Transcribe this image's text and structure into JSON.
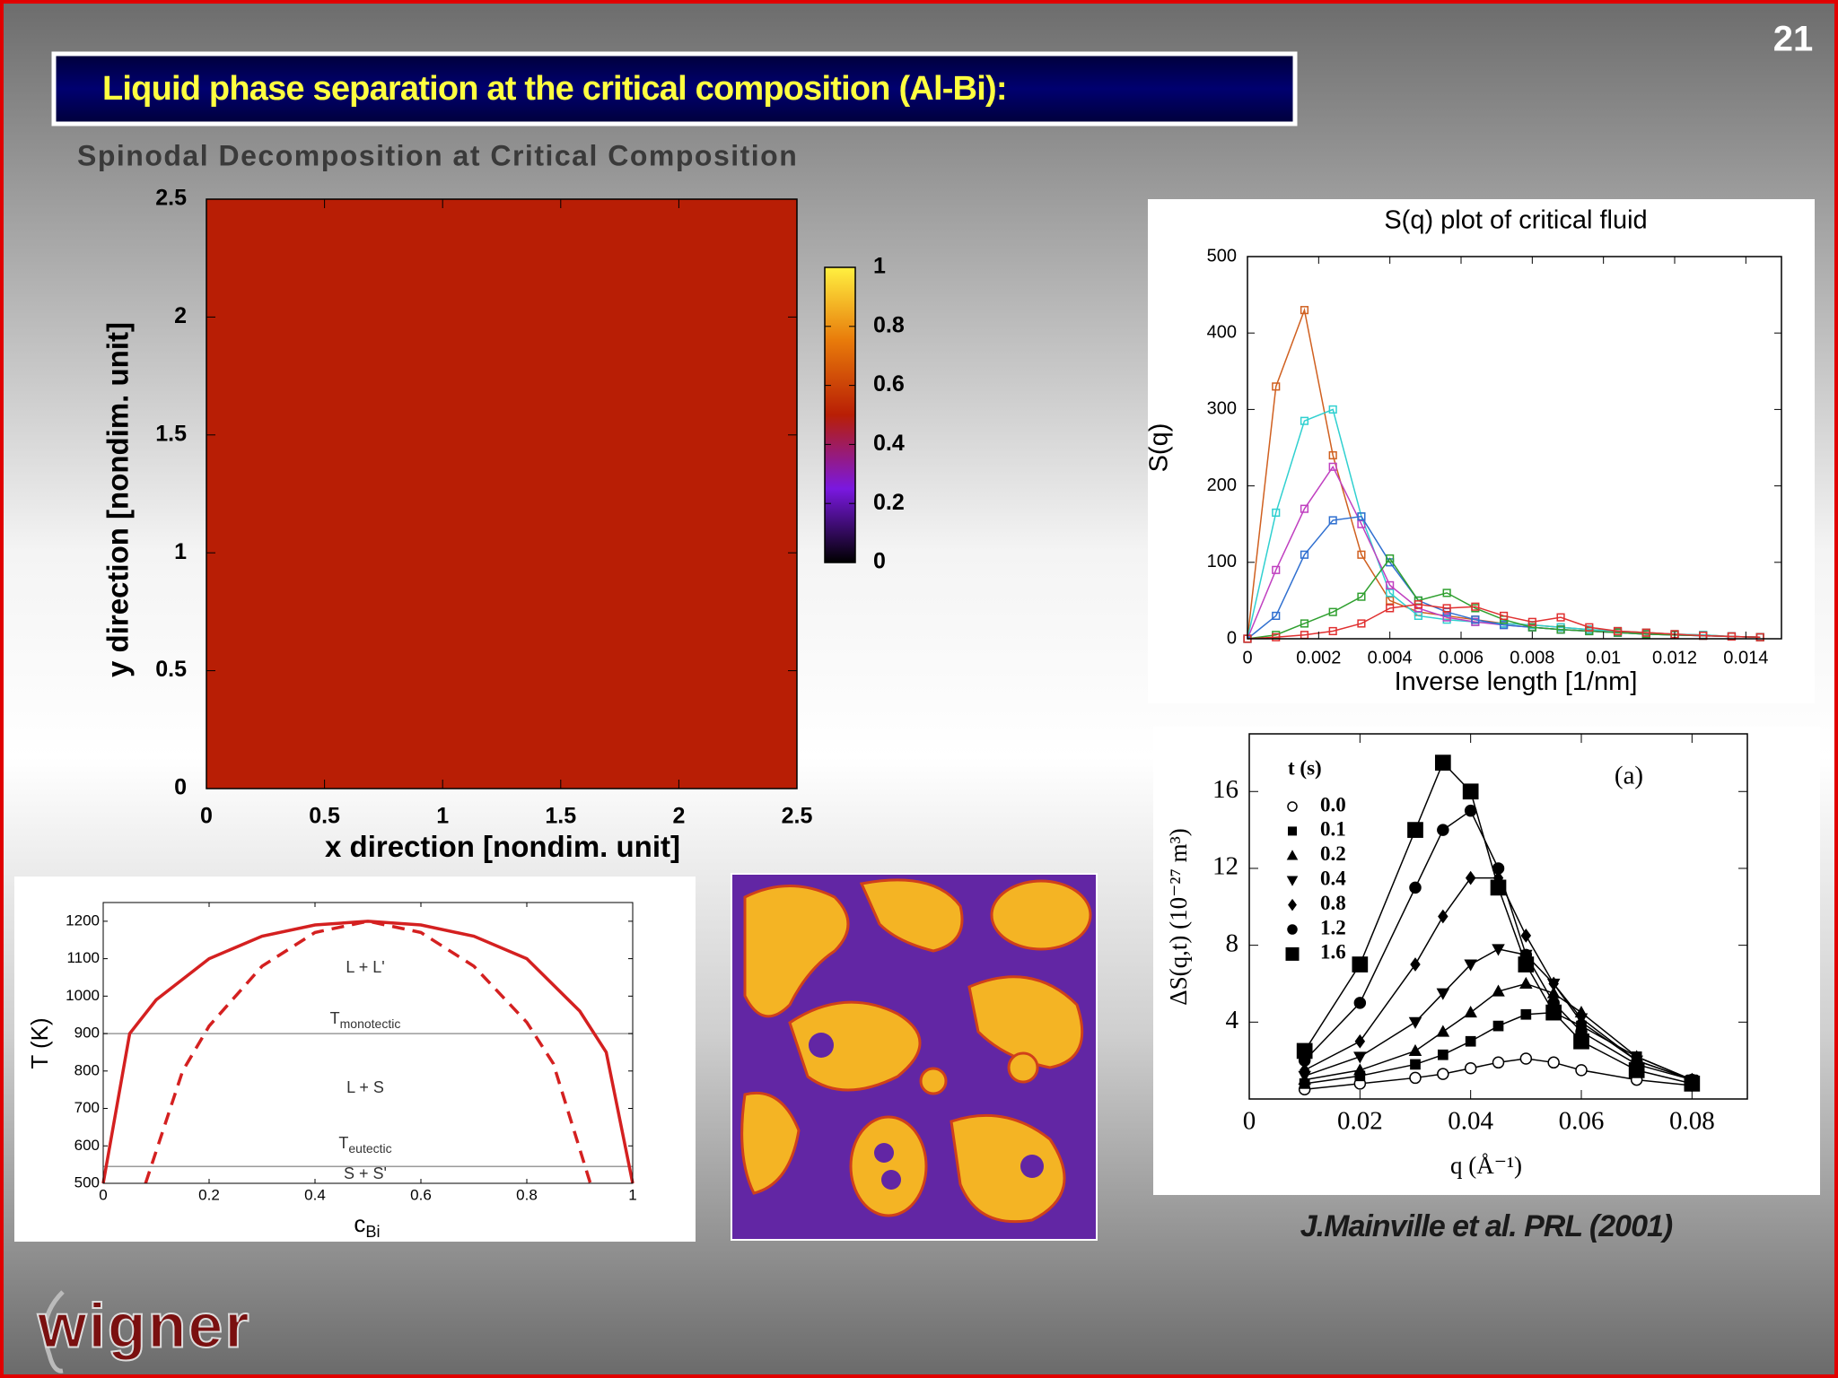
{
  "slide_number": "21",
  "title": "Liquid phase separation at the critical composition (Al-Bi):",
  "citation": "J.Mainville et al. PRL (2001)",
  "logo": "wigner",
  "chart_data": [
    {
      "type": "heatmap",
      "title": "Spinodal Decomposition at Critical Composition",
      "x_label": "x direction [nondim. unit]",
      "y_label": "y direction [nondim. unit]",
      "xlim": [
        0,
        2.5
      ],
      "xticks": [
        0,
        0.5,
        1,
        1.5,
        2,
        2.5
      ],
      "ylim": [
        0,
        2.5
      ],
      "yticks": [
        0,
        0.5,
        1,
        1.5,
        2,
        2.5
      ],
      "values": [
        [
          0.5
        ]
      ],
      "clim": [
        0,
        1
      ],
      "cticks": [
        0,
        0.2,
        0.4,
        0.6,
        0.8,
        1
      ],
      "colormap": [
        "#000000",
        "#7a18e0",
        "#b81e05",
        "#e87a0a",
        "#fff040"
      ]
    },
    {
      "type": "line",
      "title": "S(q) plot of critical fluid",
      "x_label": "Inverse length [1/nm]",
      "y_label": "S(q)",
      "xlim": [
        0,
        0.015
      ],
      "xticks": [
        0,
        0.002,
        0.004,
        0.006,
        0.008,
        0.01,
        0.012,
        0.014
      ],
      "ylim": [
        0,
        500
      ],
      "yticks": [
        0,
        100,
        200,
        300,
        400,
        500
      ],
      "marker": "open-square",
      "x": [
        0,
        0.0008,
        0.0016,
        0.0024,
        0.0032,
        0.004,
        0.0048,
        0.0056,
        0.0064,
        0.0072,
        0.008,
        0.0088,
        0.0096,
        0.0104,
        0.0112,
        0.012,
        0.0128,
        0.0136,
        0.0144
      ],
      "series": [
        {
          "color": "#d06020",
          "values": [
            0,
            330,
            430,
            240,
            110,
            50,
            35,
            30,
            25,
            20,
            18,
            15,
            12,
            10,
            8,
            6,
            5,
            3,
            2
          ]
        },
        {
          "color": "#30d0d0",
          "values": [
            0,
            165,
            285,
            300,
            160,
            60,
            30,
            25,
            22,
            20,
            18,
            15,
            12,
            10,
            8,
            6,
            5,
            3,
            2
          ]
        },
        {
          "color": "#c040c0",
          "values": [
            0,
            90,
            170,
            225,
            150,
            70,
            40,
            28,
            22,
            18,
            15,
            12,
            10,
            8,
            6,
            5,
            4,
            3,
            2
          ]
        },
        {
          "color": "#3070d0",
          "values": [
            0,
            30,
            110,
            155,
            160,
            100,
            50,
            35,
            25,
            18,
            15,
            12,
            10,
            8,
            6,
            5,
            4,
            3,
            2
          ]
        },
        {
          "color": "#30a030",
          "values": [
            0,
            5,
            20,
            35,
            55,
            105,
            50,
            60,
            40,
            25,
            15,
            12,
            10,
            8,
            6,
            5,
            4,
            3,
            2
          ]
        },
        {
          "color": "#e03030",
          "values": [
            0,
            2,
            5,
            10,
            20,
            40,
            45,
            40,
            42,
            30,
            22,
            28,
            15,
            10,
            8,
            6,
            4,
            3,
            2
          ]
        }
      ]
    },
    {
      "type": "line",
      "x_label": "q (Å⁻¹)",
      "y_label": "ΔS(q,t) (10⁻²⁷ m³)",
      "annotation": "(a)",
      "legend_title": "t (s)",
      "legend": "upper left",
      "xlim": [
        0,
        0.09
      ],
      "xticks": [
        0,
        0.02,
        0.04,
        0.06,
        0.08
      ],
      "ylim": [
        0,
        19
      ],
      "yticks": [
        4,
        8,
        12,
        16
      ],
      "line_color": "#000000",
      "x": [
        0.01,
        0.02,
        0.03,
        0.035,
        0.04,
        0.045,
        0.05,
        0.055,
        0.06,
        0.07,
        0.08
      ],
      "series": [
        {
          "name": "0.0",
          "marker": "open-circle",
          "color": "#000000",
          "values": [
            0.5,
            0.8,
            1.1,
            1.3,
            1.6,
            1.9,
            2.1,
            1.9,
            1.5,
            1.0,
            0.7
          ]
        },
        {
          "name": "0.1",
          "marker": "square",
          "color": "#000000",
          "values": [
            0.8,
            1.2,
            1.8,
            2.3,
            3.0,
            3.8,
            4.4,
            4.5,
            3.8,
            2.2,
            1.0
          ]
        },
        {
          "name": "0.2",
          "marker": "triangle-up",
          "color": "#000000",
          "values": [
            1,
            1.5,
            2.5,
            3.5,
            4.5,
            5.6,
            6.0,
            5.5,
            4.5,
            2.2,
            1.0
          ]
        },
        {
          "name": "0.4",
          "marker": "triangle-down",
          "color": "#000000",
          "values": [
            1.2,
            2.2,
            4,
            5.5,
            7,
            7.8,
            7.5,
            6,
            4.2,
            2,
            1
          ]
        },
        {
          "name": "0.8",
          "marker": "diamond",
          "color": "#000000",
          "values": [
            1.5,
            3,
            7,
            9.5,
            11.5,
            11.5,
            8.5,
            6,
            4,
            2,
            1
          ]
        },
        {
          "name": "1.2",
          "marker": "circle",
          "color": "#000000",
          "values": [
            2,
            5,
            11,
            14,
            15,
            12,
            7.5,
            5,
            3.5,
            1.8,
            1
          ]
        },
        {
          "name": "1.6",
          "marker": "large-square",
          "color": "#000000",
          "values": [
            2.5,
            7,
            14,
            17.5,
            16,
            11,
            7,
            4.5,
            3,
            1.5,
            0.8
          ]
        }
      ]
    },
    {
      "type": "line",
      "x_label": "c",
      "x_label_sub": "Bi",
      "y_label": "T (K)",
      "xlim": [
        0,
        1
      ],
      "xticks": [
        0,
        0.2,
        0.4,
        0.6,
        0.8,
        1
      ],
      "ylim": [
        500,
        1250
      ],
      "yticks": [
        500,
        600,
        700,
        800,
        900,
        1000,
        1100,
        1200
      ],
      "reference_lines": [
        900,
        545
      ],
      "annotations": [
        {
          "text": "L + L'"
        },
        {
          "text": "T",
          "sub": "monotectic"
        },
        {
          "text": "L + S"
        },
        {
          "text": "T",
          "sub": "eutectic"
        },
        {
          "text": "S + S'"
        }
      ],
      "series": [
        {
          "color": "#d42020",
          "x": [
            0,
            0.05,
            0.1,
            0.2,
            0.3,
            0.4,
            0.5,
            0.6,
            0.7,
            0.8,
            0.9,
            0.95,
            1
          ],
          "values": [
            500,
            900,
            990,
            1100,
            1160,
            1190,
            1200,
            1190,
            1160,
            1100,
            960,
            850,
            500
          ]
        },
        {
          "color": "#d42020",
          "dash": true,
          "x": [
            0.08,
            0.15,
            0.2,
            0.3,
            0.4,
            0.5,
            0.6,
            0.7,
            0.8,
            0.85,
            0.92
          ],
          "values": [
            500,
            800,
            920,
            1080,
            1170,
            1200,
            1170,
            1080,
            930,
            820,
            500
          ]
        }
      ]
    }
  ]
}
